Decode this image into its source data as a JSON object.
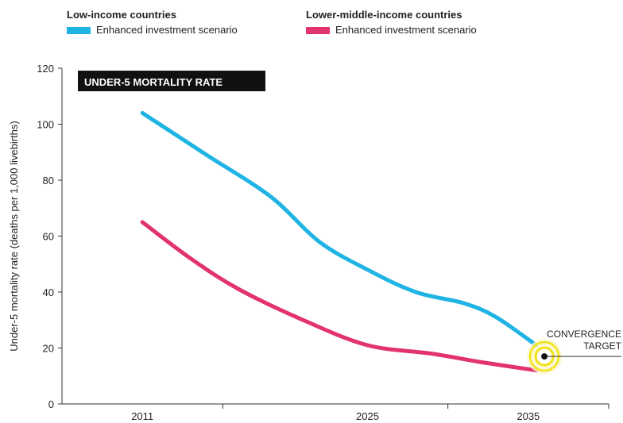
{
  "legend": {
    "groups": [
      {
        "title": "Low-income countries",
        "entry": "Enhanced investment scenario",
        "color": "#1fb4e3"
      },
      {
        "title": "Lower-middle-income countries",
        "entry": "Enhanced investment scenario",
        "color": "#e2336e"
      }
    ]
  },
  "chart_data": {
    "type": "line",
    "title": "UNDER-5 MORTALITY RATE",
    "ylabel": "Under-5 mortality rate (deaths per 1,000 livebirths)",
    "xlabel": "",
    "ylim": [
      0,
      120
    ],
    "yticks": [
      0,
      20,
      40,
      60,
      80,
      100,
      120
    ],
    "xlim": [
      2006,
      2040
    ],
    "xticks": [
      2011,
      2025,
      2035
    ],
    "series": [
      {
        "name": "Low-income countries — Enhanced investment scenario",
        "color": "#1fb4e3",
        "x": [
          2011,
          2015,
          2019,
          2022,
          2025,
          2028,
          2031,
          2033,
          2035.5
        ],
        "y": [
          104,
          89,
          74,
          58,
          48,
          40,
          36,
          31,
          21
        ]
      },
      {
        "name": "Lower-middle-income countries — Enhanced investment scenario",
        "color": "#e2336e",
        "x": [
          2011,
          2014,
          2017,
          2021,
          2025,
          2029,
          2032,
          2035.5
        ],
        "y": [
          65,
          52,
          41,
          30,
          21,
          18,
          15,
          12
        ]
      }
    ],
    "annotation": {
      "label_line1": "CONVERGENCE",
      "label_line2": "TARGET",
      "x": 2036,
      "y": 17,
      "ring_color": "#f2e21a"
    },
    "title_box_color": "#111111"
  }
}
